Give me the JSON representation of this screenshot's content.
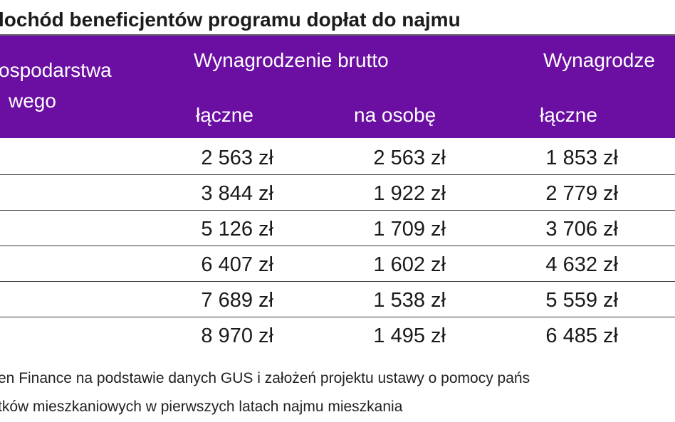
{
  "title": "lochód beneficjentów programu dopłat do najmu",
  "header": {
    "col_household_line1": "ospodarstwa",
    "col_household_line2": "wego",
    "group_brutto": "Wynagrodzenie brutto",
    "group_netto": "Wynagrodze",
    "sub_laczne_brutto": "łączne",
    "sub_na_osobe": "na osobę",
    "sub_laczne_netto": "łączne"
  },
  "rows": [
    {
      "brutto_laczne": "2 563 zł",
      "brutto_na_osobe": "2 563 zł",
      "netto_laczne": "1 853 zł"
    },
    {
      "brutto_laczne": "3 844 zł",
      "brutto_na_osobe": "1 922 zł",
      "netto_laczne": "2 779 zł"
    },
    {
      "brutto_laczne": "5 126 zł",
      "brutto_na_osobe": "1 709 zł",
      "netto_laczne": "3 706 zł"
    },
    {
      "brutto_laczne": "6 407 zł",
      "brutto_na_osobe": "1 602 zł",
      "netto_laczne": "4 632 zł"
    },
    {
      "brutto_laczne": "7 689 zł",
      "brutto_na_osobe": "1 538 zł",
      "netto_laczne": "5 559 zł"
    },
    {
      "brutto_laczne": "8 970 zł",
      "brutto_na_osobe": "1 495 zł",
      "netto_laczne": "6 485 zł"
    }
  ],
  "notes": {
    "line1": "en Finance na podstawie danych GUS i założeń projektu ustawy o pomocy pańs",
    "line2": "tków mieszkaniowych w pierwszych latach najmu mieszkania"
  },
  "colors": {
    "header_bg": "#6b0fa3",
    "header_text": "#ffffff"
  }
}
